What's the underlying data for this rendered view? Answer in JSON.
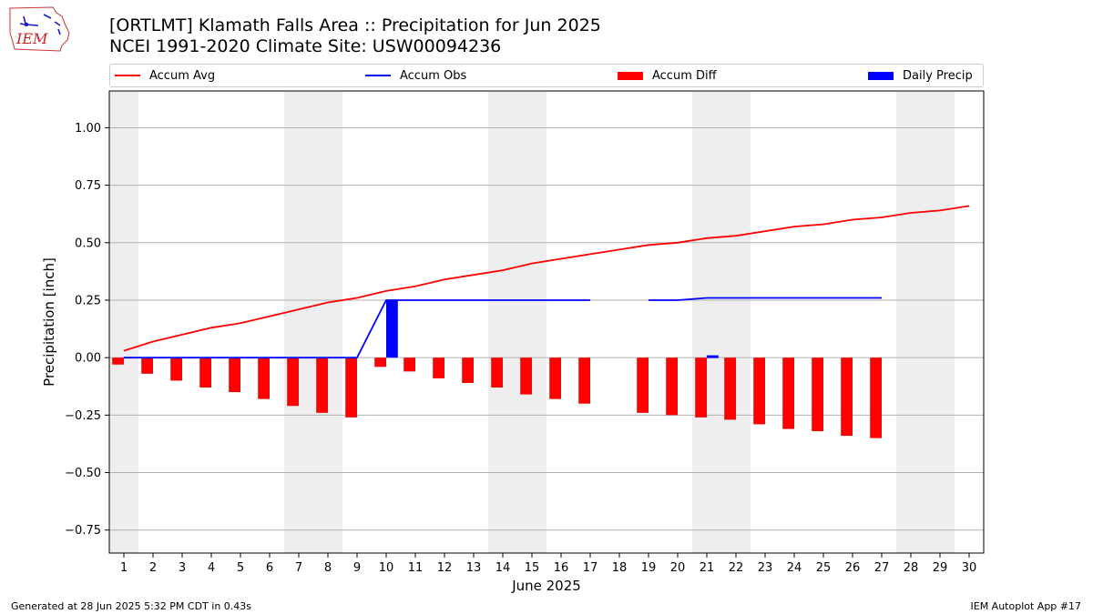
{
  "header": {
    "title": "[ORTLMT] Klamath Falls Area :: Precipitation for Jun 2025",
    "subtitle": "NCEI 1991-2020 Climate Site: USW00094236",
    "logo_text": "IEM"
  },
  "legend": {
    "items": [
      {
        "label": "Accum Avg",
        "kind": "line",
        "color": "#ff0000"
      },
      {
        "label": "Accum Obs",
        "kind": "line",
        "color": "#0000ff"
      },
      {
        "label": "Accum Diff",
        "kind": "box",
        "color": "#ff0000"
      },
      {
        "label": "Daily Precip",
        "kind": "box",
        "color": "#0000ff"
      }
    ]
  },
  "footer": {
    "generated": "Generated at 28 Jun 2025 5:32 PM CDT in 0.43s",
    "app": "IEM Autoplot App #17"
  },
  "chart_data": {
    "type": "bar",
    "xlabel": "June 2025",
    "ylabel": "Precipitation [inch]",
    "xlim": [
      0.5,
      30.5
    ],
    "ylim": [
      -0.85,
      1.16
    ],
    "yticks": [
      -0.75,
      -0.5,
      -0.25,
      0.0,
      0.25,
      0.5,
      0.75,
      1.0
    ],
    "ytick_labels": [
      "−0.75",
      "−0.50",
      "−0.25",
      "0.00",
      "0.25",
      "0.50",
      "0.75",
      "1.00"
    ],
    "days": [
      1,
      2,
      3,
      4,
      5,
      6,
      7,
      8,
      9,
      10,
      11,
      12,
      13,
      14,
      15,
      16,
      17,
      18,
      19,
      20,
      21,
      22,
      23,
      24,
      25,
      26,
      27,
      28,
      29,
      30
    ],
    "weekend_bands": [
      [
        0.5,
        1.5
      ],
      [
        6.5,
        8.5
      ],
      [
        13.5,
        15.5
      ],
      [
        20.5,
        22.5
      ],
      [
        27.5,
        29.5
      ]
    ],
    "grid": true,
    "legend_position": "top",
    "colors": {
      "avg": "#ff0000",
      "obs": "#0000ff",
      "diff": "#ff0000",
      "daily": "#0000ff",
      "weekend": "#eeeeee",
      "grid": "#b0b0b0"
    },
    "series": [
      {
        "name": "Accum Avg",
        "kind": "line",
        "values": [
          0.03,
          0.07,
          0.1,
          0.13,
          0.15,
          0.18,
          0.21,
          0.24,
          0.26,
          0.29,
          0.31,
          0.34,
          0.36,
          0.38,
          0.41,
          0.43,
          0.45,
          0.47,
          0.49,
          0.5,
          0.52,
          0.53,
          0.55,
          0.57,
          0.58,
          0.6,
          0.61,
          0.63,
          0.64,
          0.66
        ]
      },
      {
        "name": "Accum Obs",
        "kind": "line",
        "values": [
          0.0,
          0.0,
          0.0,
          0.0,
          0.0,
          0.0,
          0.0,
          0.0,
          0.0,
          0.25,
          0.25,
          0.25,
          0.25,
          0.25,
          0.25,
          0.25,
          0.25,
          null,
          0.25,
          0.25,
          0.26,
          0.26,
          0.26,
          0.26,
          0.26,
          0.26,
          0.26,
          null,
          null,
          null
        ]
      },
      {
        "name": "Accum Diff",
        "kind": "bar",
        "values": [
          -0.03,
          -0.07,
          -0.1,
          -0.13,
          -0.15,
          -0.18,
          -0.21,
          -0.24,
          -0.26,
          -0.04,
          -0.06,
          -0.09,
          -0.11,
          -0.13,
          -0.16,
          -0.18,
          -0.2,
          null,
          -0.24,
          -0.25,
          -0.26,
          -0.27,
          -0.29,
          -0.31,
          -0.32,
          -0.34,
          -0.35,
          null,
          null,
          null
        ]
      },
      {
        "name": "Daily Precip",
        "kind": "bar",
        "values": [
          0,
          0,
          0,
          0,
          0,
          0,
          0,
          0,
          0,
          0.25,
          0,
          0,
          0,
          0,
          0,
          0,
          0,
          null,
          0,
          0,
          0.01,
          0,
          0,
          0,
          0,
          0,
          0,
          null,
          null,
          null
        ]
      }
    ]
  }
}
